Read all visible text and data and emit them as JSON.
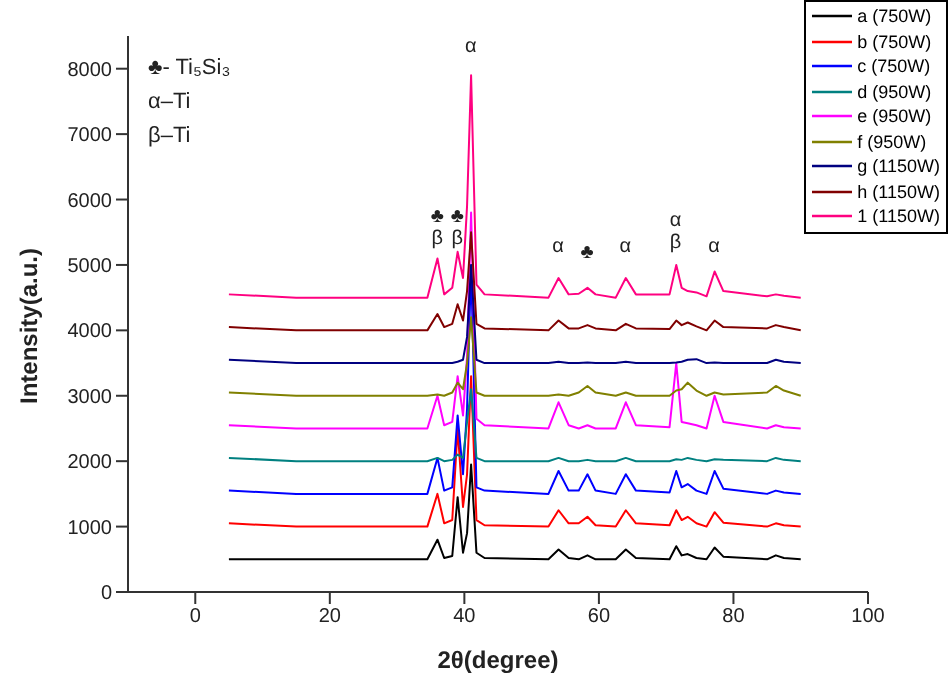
{
  "chart_data": {
    "type": "line",
    "xlabel": "2θ(degree)",
    "ylabel": "Intensity(a.u.)",
    "xlim": [
      -10,
      100
    ],
    "xticks": [
      0,
      20,
      40,
      60,
      80,
      100
    ],
    "ylim": [
      0,
      8500
    ],
    "yticks": [
      0,
      1000,
      2000,
      3000,
      4000,
      5000,
      6000,
      7000,
      8000
    ],
    "legend": "top right",
    "x": [
      5,
      15,
      25,
      34.5,
      36,
      37,
      38.2,
      39,
      39.8,
      40.4,
      41,
      41.8,
      43,
      52.5,
      54,
      55.5,
      57,
      58.3,
      59.5,
      62.5,
      64,
      65.5,
      70.5,
      71.5,
      72.3,
      73.2,
      74.5,
      76,
      77.2,
      78.5,
      85,
      86.3,
      87.5,
      90
    ],
    "series": [
      {
        "name": "a (750W)",
        "color": "#000000",
        "values": [
          500,
          500,
          500,
          500,
          800,
          520,
          550,
          1450,
          600,
          900,
          1950,
          600,
          520,
          500,
          650,
          520,
          500,
          560,
          500,
          500,
          650,
          520,
          500,
          700,
          560,
          580,
          520,
          500,
          680,
          540,
          500,
          560,
          520,
          500
        ]
      },
      {
        "name": "b (750W)",
        "color": "#ff0000",
        "values": [
          1050,
          1000,
          1000,
          1000,
          1500,
          1050,
          1100,
          2500,
          1300,
          1800,
          3300,
          1100,
          1020,
          1000,
          1250,
          1050,
          1050,
          1150,
          1020,
          1000,
          1250,
          1050,
          1020,
          1250,
          1100,
          1150,
          1050,
          1000,
          1220,
          1060,
          1000,
          1050,
          1020,
          1000
        ]
      },
      {
        "name": "c (750W)",
        "color": "#0000ff",
        "values": [
          1550,
          1500,
          1500,
          1500,
          2050,
          1550,
          1600,
          2700,
          1800,
          2800,
          5000,
          1600,
          1550,
          1500,
          1850,
          1550,
          1550,
          1800,
          1550,
          1500,
          1800,
          1550,
          1520,
          1850,
          1600,
          1650,
          1550,
          1500,
          1850,
          1580,
          1500,
          1550,
          1520,
          1500
        ]
      },
      {
        "name": "d (950W)",
        "color": "#008080",
        "values": [
          2050,
          2000,
          2000,
          2000,
          2050,
          2000,
          2020,
          2100,
          2050,
          2600,
          3100,
          2050,
          2000,
          2000,
          2050,
          2000,
          2000,
          2020,
          2000,
          2000,
          2050,
          2000,
          2000,
          2030,
          2020,
          2050,
          2020,
          2000,
          2030,
          2020,
          2000,
          2050,
          2020,
          2000
        ]
      },
      {
        "name": "e (950W)",
        "color": "#ff00ff",
        "values": [
          2550,
          2500,
          2500,
          2500,
          3000,
          2550,
          2600,
          3300,
          2700,
          3600,
          5800,
          2650,
          2550,
          2500,
          2900,
          2550,
          2500,
          2550,
          2500,
          2500,
          2900,
          2550,
          2520,
          3500,
          2600,
          2580,
          2550,
          2500,
          3000,
          2600,
          2500,
          2550,
          2520,
          2500
        ]
      },
      {
        "name": "f (950W)",
        "color": "#808000",
        "values": [
          3050,
          3000,
          3000,
          3000,
          3020,
          3000,
          3050,
          3200,
          3100,
          3500,
          4200,
          3050,
          3000,
          3000,
          3020,
          3000,
          3050,
          3150,
          3050,
          3000,
          3050,
          3000,
          3000,
          3080,
          3100,
          3200,
          3080,
          3000,
          3050,
          3020,
          3050,
          3150,
          3080,
          3000
        ]
      },
      {
        "name": "g (1150W)",
        "color": "#000080",
        "values": [
          3550,
          3500,
          3500,
          3500,
          3500,
          3500,
          3500,
          3520,
          3550,
          3900,
          5000,
          3550,
          3500,
          3500,
          3520,
          3500,
          3500,
          3510,
          3500,
          3500,
          3520,
          3500,
          3500,
          3510,
          3520,
          3550,
          3560,
          3500,
          3510,
          3500,
          3500,
          3550,
          3520,
          3500
        ]
      },
      {
        "name": "h (1150W)",
        "color": "#800000",
        "values": [
          4050,
          4000,
          4000,
          4000,
          4250,
          4050,
          4100,
          4400,
          4150,
          4600,
          5500,
          4100,
          4030,
          4000,
          4150,
          4030,
          4030,
          4080,
          4030,
          4000,
          4100,
          4030,
          4020,
          4150,
          4080,
          4120,
          4060,
          4000,
          4150,
          4050,
          4030,
          4080,
          4050,
          4000
        ]
      },
      {
        "name": "1 (1150W)",
        "color": "#ff0080",
        "values": [
          4550,
          4500,
          4500,
          4500,
          5100,
          4550,
          4650,
          5200,
          4800,
          5900,
          7900,
          4700,
          4550,
          4500,
          4800,
          4550,
          4560,
          4650,
          4550,
          4500,
          4800,
          4550,
          4550,
          5000,
          4650,
          4600,
          4580,
          4520,
          4900,
          4600,
          4520,
          4550,
          4530,
          4500
        ]
      }
    ],
    "annotations": [
      "♣- Ti₅Si₃",
      "α–Ti",
      "β–Ti",
      "♣",
      "β",
      "♣",
      "β",
      "α",
      "α",
      "♣",
      "α",
      "α",
      "β",
      "α"
    ]
  }
}
